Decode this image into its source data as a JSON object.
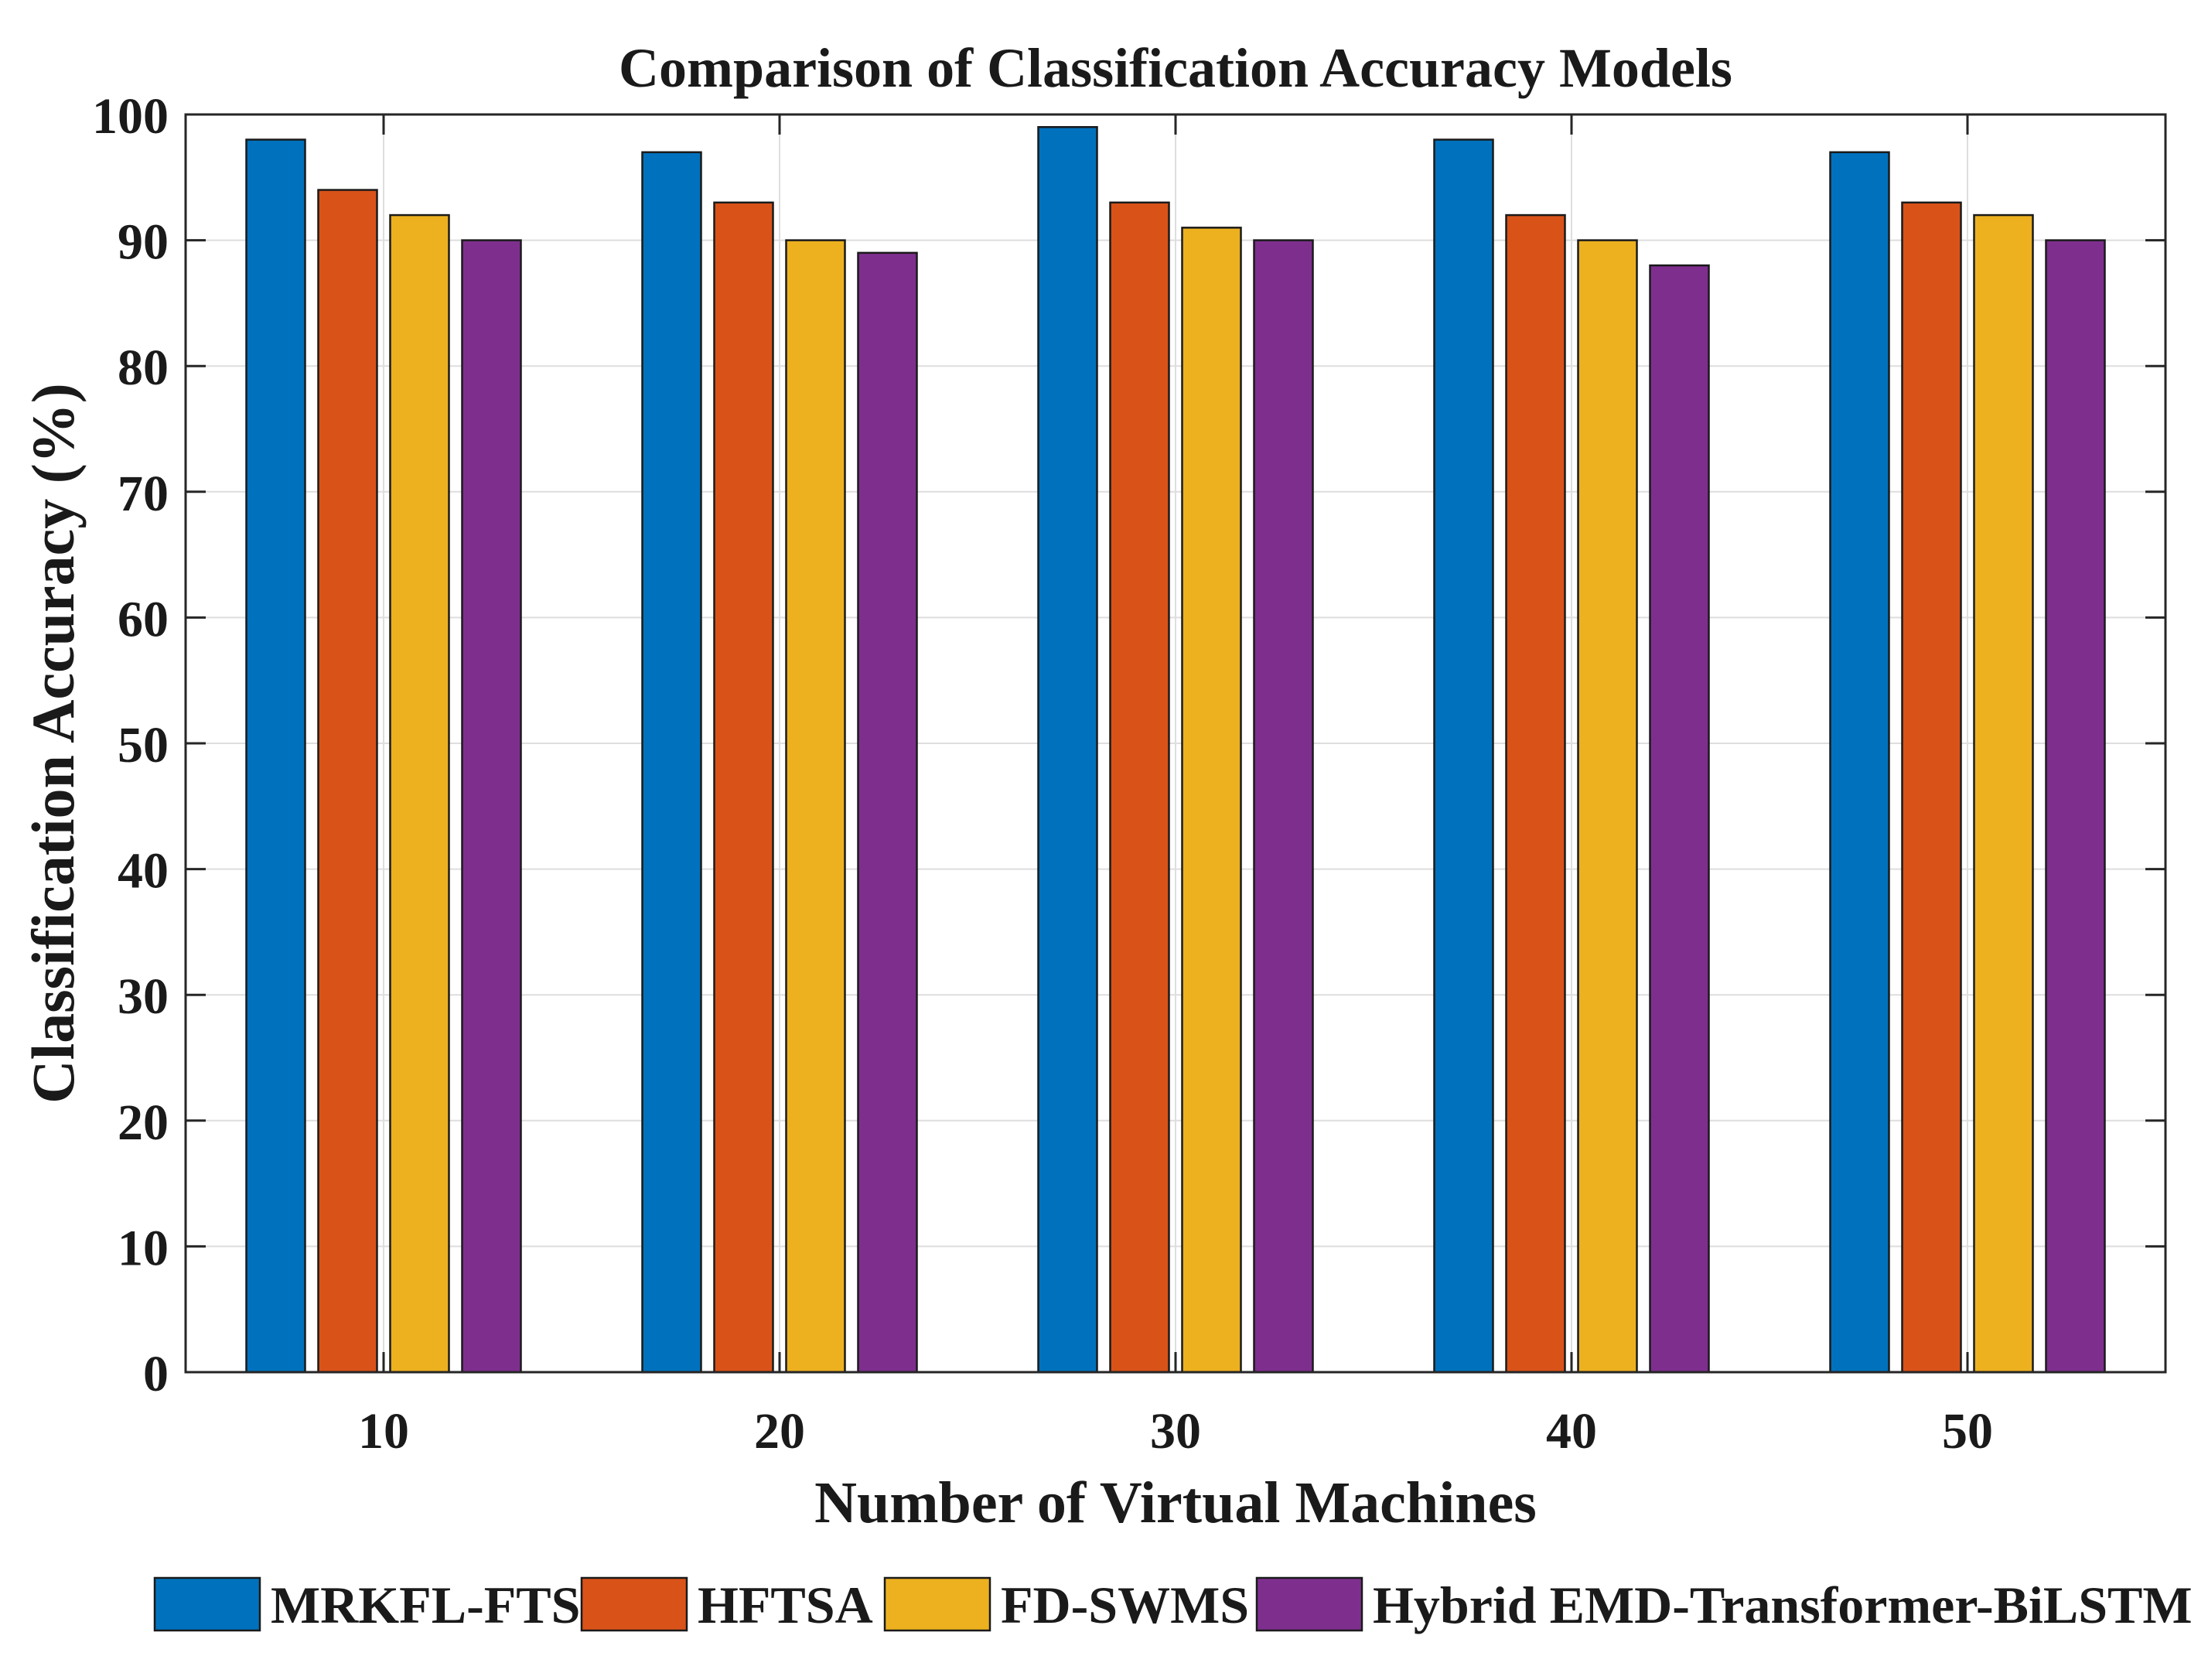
{
  "chart_data": {
    "type": "bar",
    "title": "Comparison of Classification Accuracy  Models",
    "xlabel": "Number of Virtual Machines",
    "ylabel": "Classification Accuracy (%)",
    "categories": [
      "10",
      "20",
      "30",
      "40",
      "50"
    ],
    "ylim": [
      0,
      100
    ],
    "yticks": [
      "0",
      "10",
      "20",
      "30",
      "40",
      "50",
      "60",
      "70",
      "80",
      "90",
      "100"
    ],
    "grid": true,
    "legend_position": "bottom",
    "series": [
      {
        "name": "MRKFL-FTS",
        "color": "#0072BD",
        "values": [
          98,
          97,
          99,
          98,
          97
        ]
      },
      {
        "name": "HFTSA",
        "color": "#D95319",
        "values": [
          94,
          93,
          93,
          92,
          93
        ]
      },
      {
        "name": "FD-SWMS",
        "color": "#EDB120",
        "values": [
          92,
          90,
          91,
          90,
          92
        ]
      },
      {
        "name": "Hybrid EMD-Transformer-BiLSTM",
        "color": "#7E2F8E",
        "values": [
          90,
          89,
          90,
          88,
          90
        ]
      }
    ]
  }
}
